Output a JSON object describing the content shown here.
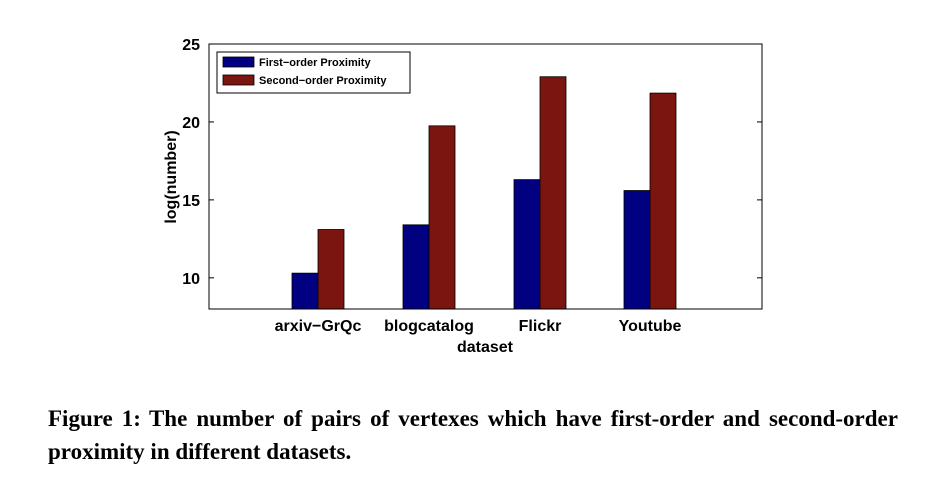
{
  "chart_data": {
    "type": "bar",
    "categories": [
      "arxiv−GrQc",
      "blogcatalog",
      "Flickr",
      "Youtube"
    ],
    "series": [
      {
        "name": "First−order Proximity",
        "values": [
          10.3,
          13.4,
          16.3,
          15.6
        ],
        "color": "#000080"
      },
      {
        "name": "Second−order Proximity",
        "values": [
          13.1,
          19.75,
          22.9,
          21.85
        ],
        "color": "#7a1510"
      }
    ],
    "xlabel": "dataset",
    "ylabel": "log(number)",
    "ylim": [
      8,
      25
    ],
    "yticks": [
      10,
      15,
      20,
      25
    ],
    "legend_position": "top-left",
    "grid": false
  },
  "caption": {
    "label": "Figure 1:",
    "text": "The number of pairs of vertexes which have first-order and second-order proximity in different datasets."
  }
}
